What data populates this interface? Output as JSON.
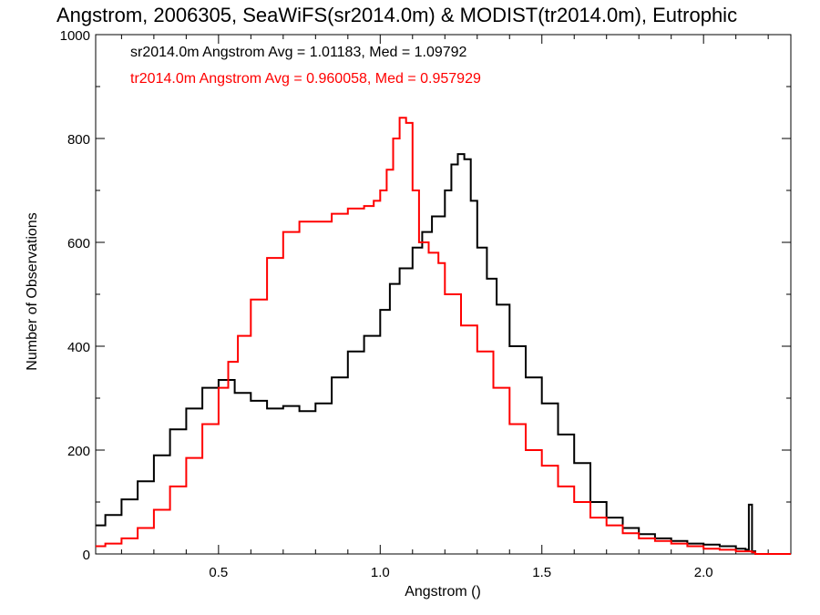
{
  "chart_data": {
    "type": "line",
    "title": "Angstrom, 2006305, SeaWiFS(sr2014.0m) & MODIST(tr2014.0m), Eutrophic",
    "xlabel": "Angstrom ()",
    "ylabel": "Number of Observations",
    "xlim": [
      0.12,
      2.27
    ],
    "ylim": [
      0,
      1000
    ],
    "x_ticks": [
      0.5,
      1.0,
      1.5,
      2.0
    ],
    "x_tick_labels": [
      "0.5",
      "1.0",
      "1.5",
      "2.0"
    ],
    "y_ticks": [
      0,
      200,
      400,
      600,
      800,
      1000
    ],
    "y_tick_labels": [
      "0",
      "200",
      "400",
      "600",
      "800",
      "1000"
    ],
    "grid": false,
    "step": true,
    "annotations": [
      {
        "text": "sr2014.0m Angstrom Avg = 1.01183, Med = 1.09792",
        "color": "#000000"
      },
      {
        "text": "tr2014.0m Angstrom Avg = 0.960058, Med = 0.957929",
        "color": "#ff0000"
      }
    ],
    "series": [
      {
        "color": "#000000",
        "x": [
          0.12,
          0.15,
          0.2,
          0.25,
          0.3,
          0.35,
          0.4,
          0.45,
          0.5,
          0.55,
          0.6,
          0.65,
          0.7,
          0.75,
          0.8,
          0.85,
          0.9,
          0.95,
          1.0,
          1.03,
          1.06,
          1.1,
          1.13,
          1.16,
          1.2,
          1.22,
          1.24,
          1.26,
          1.28,
          1.3,
          1.33,
          1.36,
          1.4,
          1.45,
          1.5,
          1.55,
          1.6,
          1.65,
          1.7,
          1.75,
          1.8,
          1.85,
          1.9,
          1.95,
          2.0,
          2.05,
          2.1,
          2.13,
          2.14,
          2.15,
          2.16
        ],
        "y": [
          55,
          75,
          105,
          140,
          190,
          240,
          280,
          320,
          335,
          310,
          295,
          280,
          285,
          275,
          290,
          340,
          390,
          420,
          470,
          520,
          550,
          590,
          620,
          650,
          700,
          750,
          770,
          760,
          680,
          590,
          530,
          480,
          400,
          340,
          290,
          230,
          175,
          100,
          70,
          50,
          38,
          30,
          25,
          20,
          18,
          15,
          10,
          8,
          95,
          5,
          0
        ]
      },
      {
        "color": "#ff0000",
        "x": [
          0.12,
          0.15,
          0.2,
          0.25,
          0.3,
          0.35,
          0.4,
          0.45,
          0.5,
          0.53,
          0.56,
          0.6,
          0.65,
          0.7,
          0.75,
          0.8,
          0.85,
          0.9,
          0.95,
          0.98,
          1.0,
          1.02,
          1.04,
          1.06,
          1.08,
          1.1,
          1.12,
          1.15,
          1.18,
          1.2,
          1.25,
          1.3,
          1.35,
          1.4,
          1.45,
          1.5,
          1.55,
          1.6,
          1.65,
          1.7,
          1.75,
          1.8,
          1.85,
          1.9,
          1.95,
          2.0,
          2.05,
          2.1,
          2.15,
          2.16
        ],
        "y": [
          15,
          20,
          30,
          50,
          85,
          130,
          185,
          250,
          320,
          370,
          420,
          490,
          570,
          620,
          640,
          640,
          655,
          665,
          670,
          680,
          700,
          740,
          800,
          840,
          830,
          700,
          600,
          580,
          560,
          500,
          440,
          390,
          320,
          250,
          200,
          170,
          130,
          100,
          70,
          55,
          40,
          30,
          25,
          20,
          15,
          10,
          8,
          5,
          3,
          0
        ]
      }
    ]
  }
}
